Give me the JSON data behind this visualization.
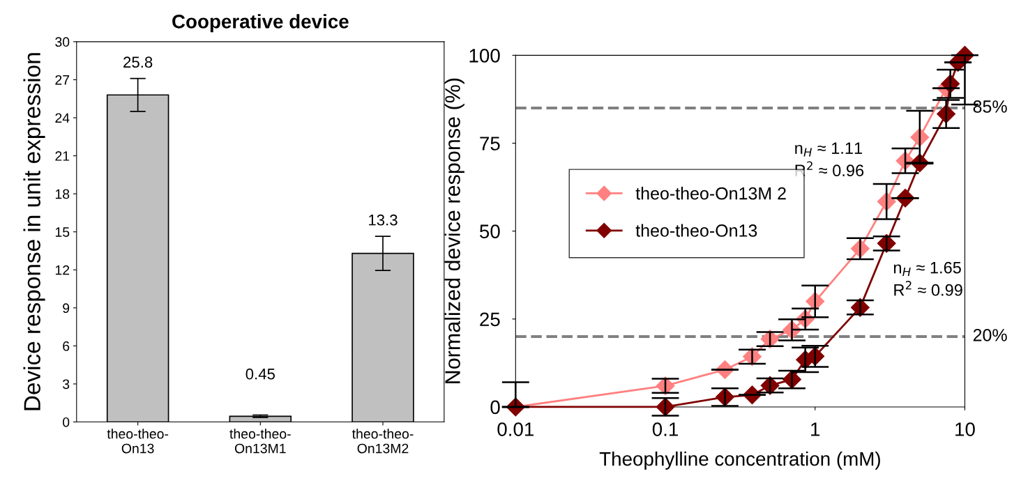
{
  "chart_data": [
    {
      "type": "bar",
      "title": "Cooperative device",
      "ylabel": "Device response in unit expression",
      "categories": [
        "theo-theo-\nOn13",
        "theo-theo-\nOn13M1",
        "theo-theo-\nOn13M2"
      ],
      "values": [
        25.8,
        0.45,
        13.3
      ],
      "errors": [
        1.3,
        0.1,
        1.35
      ],
      "color": "#c0c0c0",
      "ylim": [
        0,
        30
      ],
      "yticks": [
        0,
        3,
        6,
        9,
        12,
        15,
        18,
        21,
        24,
        27,
        30
      ],
      "data_labels": true,
      "grid": false
    },
    {
      "type": "line",
      "xlabel": "Theophylline concentration (mM)",
      "ylabel": "Normalized device response (%)",
      "log": "x",
      "xlim": [
        0.01,
        10
      ],
      "xticks": [
        0.01,
        0.1,
        1,
        10
      ],
      "ylim": [
        0,
        100
      ],
      "yticks": [
        0,
        25,
        50,
        75,
        100
      ],
      "marker": "diamond",
      "line_style": "solid",
      "grid": false,
      "legend": "center left",
      "series": [
        {
          "name": "theo-theo-On13M 2",
          "color": "#ff8080",
          "x": [
            0.01,
            0.1,
            0.25,
            0.38,
            0.5,
            0.7,
            0.86,
            1,
            2,
            3,
            4,
            5,
            7.5
          ],
          "values": [
            0,
            6,
            10.6,
            14.3,
            19.3,
            21.9,
            25,
            30,
            45,
            58.4,
            70,
            76.7,
            90.6
          ],
          "errors": [
            [
              0,
              7
            ],
            2,
            null,
            2,
            2,
            3,
            3,
            4.5,
            3,
            5,
            3.5,
            7.5,
            null
          ]
        },
        {
          "name": "theo-theo-On13",
          "color": "#800000",
          "x": [
            0.01,
            0.1,
            0.25,
            0.38,
            0.5,
            0.7,
            0.86,
            1,
            2,
            3,
            4,
            5,
            7.5,
            8,
            9,
            10
          ],
          "values": [
            0,
            0,
            2.8,
            3.4,
            6.1,
            7.8,
            13.4,
            14.4,
            28.3,
            46.5,
            59.4,
            69.4,
            83.3,
            91.9,
            98,
            100
          ],
          "errors": [
            null,
            2.5,
            2.5,
            null,
            2,
            2.5,
            3.5,
            3,
            2,
            2,
            null,
            null,
            4,
            4,
            null,
            [
              86,
              100
            ]
          ]
        }
      ],
      "ref_lines": [
        {
          "axis": "y",
          "value": 85,
          "label": "85%",
          "color": "#808080",
          "line_style": "dashed"
        },
        {
          "axis": "y",
          "value": 20,
          "label": "20%",
          "color": "#808080",
          "line_style": "dashed"
        }
      ],
      "annotations": [
        "n$_{H}$ ≈ 1.11\nR$^{2}$ ≈ 0.96",
        "n$_{H}$ ≈ 1.65\nR$^{2}$ ≈ 0.99"
      ]
    }
  ]
}
